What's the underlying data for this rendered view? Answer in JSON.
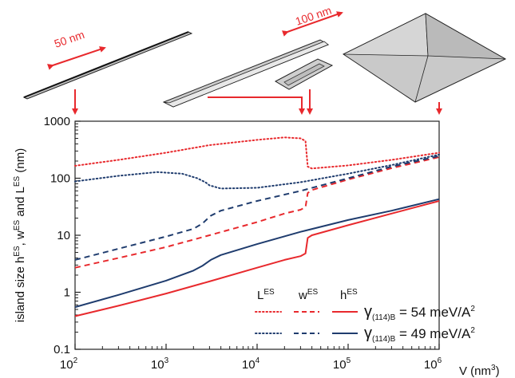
{
  "chart_data": {
    "type": "line",
    "x_scale": "log",
    "y_scale": "log",
    "xlim": [
      100,
      1000000
    ],
    "ylim": [
      0.1,
      1000
    ],
    "grid": false,
    "legend_position": "bottom-right",
    "xlabel": {
      "main": "V (nm",
      "sup": "3",
      "tail": ")"
    },
    "ylabel": {
      "pre": "island size h",
      "s1": "ES",
      "mid1": ", w",
      "s2": "ES",
      "mid2": " and L",
      "s3": "ES",
      "tail": " (nm)"
    },
    "x_ticks": [
      {
        "value": 100,
        "base": "10",
        "exp": "2"
      },
      {
        "value": 1000,
        "base": "10",
        "exp": "3"
      },
      {
        "value": 10000,
        "base": "10",
        "exp": "4"
      },
      {
        "value": 100000,
        "base": "10",
        "exp": "5"
      },
      {
        "value": 1000000,
        "base": "10",
        "exp": "6"
      }
    ],
    "y_ticks": [
      {
        "value": 0.1,
        "label": "0.1"
      },
      {
        "value": 1,
        "label": "1"
      },
      {
        "value": 10,
        "label": "10"
      },
      {
        "value": 100,
        "label": "100"
      },
      {
        "value": 1000,
        "label": "1000"
      }
    ],
    "legend": {
      "columns": [
        {
          "base": "L",
          "sup": "ES"
        },
        {
          "base": "w",
          "sup": "ES"
        },
        {
          "base": "h",
          "sup": "ES"
        }
      ],
      "rows": [
        {
          "gamma": "γ",
          "sub": "(114)B",
          "value": " = 54 meV/A",
          "sup": "2",
          "color": "#e8292d"
        },
        {
          "gamma": "γ",
          "sub": "(114)B",
          "value": " = 49 meV/A",
          "sup": "2",
          "color": "#1f3c6e"
        }
      ]
    },
    "series": [
      {
        "quantity": "L",
        "group": "54",
        "color": "#e8292d",
        "style": "dotted",
        "x": [
          100,
          300,
          1000,
          3000,
          10000,
          20000,
          30000,
          34000,
          36000,
          40000,
          100000,
          300000,
          1000000
        ],
        "y": [
          165,
          210,
          280,
          380,
          470,
          520,
          500,
          450,
          160,
          148,
          168,
          210,
          280
        ]
      },
      {
        "quantity": "w",
        "group": "54",
        "color": "#e8292d",
        "style": "dashed",
        "x": [
          100,
          300,
          1000,
          3000,
          10000,
          20000,
          30000,
          34000,
          36000,
          40000,
          100000,
          300000,
          1000000
        ],
        "y": [
          2.7,
          4.0,
          6.2,
          10.0,
          17.0,
          24.0,
          28.0,
          31.0,
          55.0,
          62.0,
          95.0,
          150.0,
          235.0
        ]
      },
      {
        "quantity": "h",
        "group": "54",
        "color": "#e8292d",
        "style": "solid",
        "x": [
          100,
          300,
          1000,
          3000,
          10000,
          20000,
          30000,
          34000,
          36000,
          40000,
          100000,
          300000,
          1000000
        ],
        "y": [
          0.38,
          0.58,
          0.95,
          1.55,
          2.7,
          3.7,
          4.3,
          4.8,
          9.0,
          10.0,
          15.0,
          24.0,
          40.0
        ]
      },
      {
        "quantity": "L",
        "group": "49",
        "color": "#1f3c6e",
        "style": "dotted",
        "x": [
          100,
          300,
          800,
          1500,
          2200,
          2700,
          3000,
          4000,
          10000,
          30000,
          100000,
          300000,
          1000000
        ],
        "y": [
          88,
          110,
          128,
          120,
          100,
          85,
          75,
          66,
          68,
          85,
          120,
          170,
          260
        ]
      },
      {
        "quantity": "w",
        "group": "49",
        "color": "#1f3c6e",
        "style": "dashed",
        "x": [
          100,
          300,
          1000,
          2000,
          2500,
          2800,
          3100,
          4000,
          10000,
          30000,
          100000,
          300000,
          1000000
        ],
        "y": [
          3.7,
          5.8,
          9.5,
          13.0,
          16.0,
          19.0,
          22.0,
          27.0,
          40.0,
          60.0,
          100.0,
          160.0,
          245.0
        ]
      },
      {
        "quantity": "h",
        "group": "49",
        "color": "#1f3c6e",
        "style": "solid",
        "x": [
          100,
          300,
          1000,
          2000,
          2500,
          2800,
          3100,
          4000,
          10000,
          30000,
          100000,
          300000,
          1000000
        ],
        "y": [
          0.55,
          0.9,
          1.6,
          2.4,
          2.9,
          3.3,
          3.7,
          4.5,
          7.0,
          11.5,
          18.5,
          27.0,
          43.0
        ]
      }
    ],
    "top_scale_bars": [
      {
        "label": "50 nm"
      },
      {
        "label": "100 nm"
      }
    ],
    "callout_x": [
      100,
      30000,
      38000,
      1000000
    ]
  }
}
